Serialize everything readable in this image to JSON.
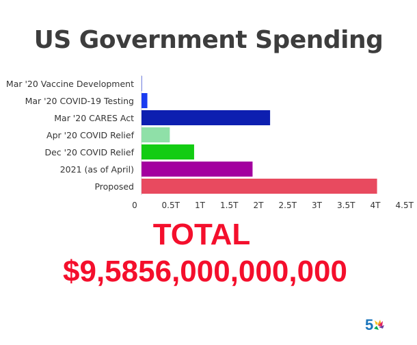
{
  "chart_data": {
    "type": "bar",
    "orientation": "horizontal",
    "title": "US Government Spending",
    "categories": [
      "Mar '20 Vaccine Development",
      "Mar '20 COVID-19 Testing",
      "Mar '20 CARES Act",
      "Apr '20 COVID Relief",
      "Dec '20 COVID Relief",
      "2021 (as of April)",
      "Proposed"
    ],
    "values": [
      0.008,
      0.1,
      2.2,
      0.484,
      0.9,
      1.9,
      4.03
    ],
    "bar_colors": [
      "#7d8cf0",
      "#1a3cf0",
      "#0d1fb0",
      "#8fe0a8",
      "#13cc13",
      "#a3009f",
      "#e84a5f"
    ],
    "xlim": [
      0,
      4.5
    ],
    "x_ticks": [
      0,
      0.5,
      1,
      1.5,
      2,
      2.5,
      3,
      3.5,
      4,
      4.5
    ],
    "x_tick_labels": [
      "0",
      "0.5T",
      "1T",
      "1.5T",
      "2T",
      "2.5T",
      "3T",
      "3.5T",
      "4T",
      "4.5T"
    ],
    "grid": false,
    "legend": "none"
  },
  "total": {
    "label": "TOTAL",
    "value": "$9,5856,000,000,000"
  },
  "logo": {
    "icon": "nbc-channel-5-icon",
    "text": "5",
    "color": "#1b75bb"
  }
}
